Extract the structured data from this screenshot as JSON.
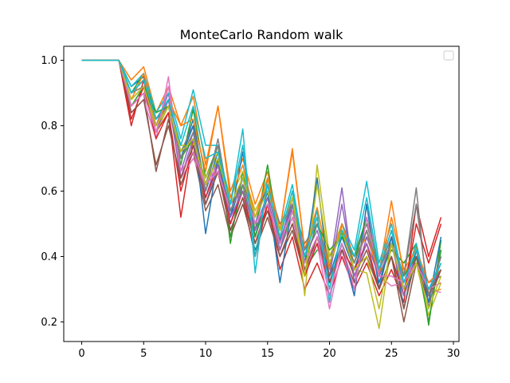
{
  "chart_data": {
    "type": "line",
    "title": "MonteCarlo Random walk",
    "xlabel": "",
    "ylabel": "",
    "xlim": [
      -1.45,
      30.45
    ],
    "ylim": [
      0.14,
      1.043
    ],
    "xticks": [
      0,
      5,
      10,
      15,
      20,
      25,
      30
    ],
    "yticks": [
      0.2,
      0.4,
      0.6,
      0.8,
      1.0
    ],
    "xtick_labels": [
      "0",
      "5",
      "10",
      "15",
      "20",
      "25",
      "30"
    ],
    "ytick_labels": [
      "0.2",
      "0.4",
      "0.6",
      "0.8",
      "1.0"
    ],
    "grid": false,
    "legend": {
      "placement": "upper right",
      "entries": []
    },
    "x": [
      0,
      1,
      2,
      3,
      4,
      5,
      6,
      7,
      8,
      9,
      10,
      11,
      12,
      13,
      14,
      15,
      16,
      17,
      18,
      19,
      20,
      21,
      22,
      23,
      24,
      25,
      26,
      27,
      28,
      29
    ],
    "series": [
      {
        "color": "#1f77b4",
        "values": [
          1,
          1,
          1,
          1,
          0.92,
          0.95,
          0.8,
          0.88,
          0.7,
          0.82,
          0.6,
          0.72,
          0.52,
          0.64,
          0.5,
          0.62,
          0.45,
          0.56,
          0.4,
          0.52,
          0.34,
          0.46,
          0.36,
          0.48,
          0.32,
          0.44,
          0.3,
          0.42,
          0.28,
          0.4
        ]
      },
      {
        "color": "#ff7f0e",
        "values": [
          1,
          1,
          1,
          1,
          0.94,
          0.98,
          0.84,
          0.92,
          0.8,
          0.89,
          0.68,
          0.86,
          0.6,
          0.7,
          0.56,
          0.66,
          0.48,
          0.73,
          0.42,
          0.55,
          0.37,
          0.5,
          0.4,
          0.46,
          0.35,
          0.57,
          0.34,
          0.43,
          0.29,
          0.3
        ]
      },
      {
        "color": "#2ca02c",
        "values": [
          1,
          1,
          1,
          1,
          0.9,
          0.96,
          0.82,
          0.86,
          0.68,
          0.85,
          0.64,
          0.74,
          0.44,
          0.66,
          0.48,
          0.68,
          0.44,
          0.54,
          0.36,
          0.42,
          0.4,
          0.47,
          0.38,
          0.52,
          0.34,
          0.42,
          0.38,
          0.44,
          0.19,
          0.45
        ]
      },
      {
        "color": "#d62728",
        "values": [
          1,
          1,
          1,
          1,
          0.8,
          0.94,
          0.78,
          0.84,
          0.52,
          0.76,
          0.56,
          0.66,
          0.48,
          0.58,
          0.4,
          0.56,
          0.36,
          0.46,
          0.3,
          0.38,
          0.28,
          0.4,
          0.3,
          0.38,
          0.28,
          0.36,
          0.26,
          0.56,
          0.4,
          0.52
        ]
      },
      {
        "color": "#9467bd",
        "values": [
          1,
          1,
          1,
          1,
          0.88,
          0.92,
          0.8,
          0.9,
          0.66,
          0.78,
          0.58,
          0.7,
          0.5,
          0.62,
          0.46,
          0.6,
          0.44,
          0.58,
          0.38,
          0.5,
          0.36,
          0.61,
          0.32,
          0.46,
          0.36,
          0.48,
          0.3,
          0.4,
          0.32,
          0.34
        ]
      },
      {
        "color": "#8c564b",
        "values": [
          1,
          1,
          1,
          1,
          0.86,
          0.9,
          0.66,
          0.82,
          0.62,
          0.72,
          0.54,
          0.62,
          0.46,
          0.56,
          0.42,
          0.52,
          0.4,
          0.48,
          0.34,
          0.46,
          0.32,
          0.44,
          0.34,
          0.42,
          0.3,
          0.4,
          0.2,
          0.38,
          0.26,
          0.36
        ]
      },
      {
        "color": "#e377c2",
        "values": [
          1,
          1,
          1,
          1,
          0.84,
          0.88,
          0.76,
          0.95,
          0.64,
          0.7,
          0.62,
          0.68,
          0.56,
          0.6,
          0.5,
          0.58,
          0.42,
          0.52,
          0.36,
          0.44,
          0.24,
          0.42,
          0.28,
          0.56,
          0.34,
          0.31,
          0.32,
          0.4,
          0.3,
          0.29
        ]
      },
      {
        "color": "#7f7f7f",
        "values": [
          1,
          1,
          1,
          1,
          0.9,
          0.94,
          0.82,
          0.88,
          0.72,
          0.8,
          0.6,
          0.76,
          0.54,
          0.64,
          0.52,
          0.62,
          0.5,
          0.56,
          0.44,
          0.5,
          0.38,
          0.48,
          0.4,
          0.5,
          0.36,
          0.46,
          0.34,
          0.61,
          0.24,
          0.42
        ]
      },
      {
        "color": "#bcbd22",
        "values": [
          1,
          1,
          1,
          1,
          0.88,
          0.92,
          0.78,
          0.86,
          0.74,
          0.74,
          0.64,
          0.72,
          0.58,
          0.66,
          0.54,
          0.62,
          0.46,
          0.6,
          0.28,
          0.68,
          0.4,
          0.5,
          0.36,
          0.35,
          0.18,
          0.44,
          0.28,
          0.38,
          0.22,
          0.32
        ]
      },
      {
        "color": "#17becf",
        "values": [
          1,
          1,
          1,
          1,
          0.92,
          0.96,
          0.84,
          0.9,
          0.76,
          0.91,
          0.74,
          0.74,
          0.56,
          0.79,
          0.35,
          0.64,
          0.48,
          0.62,
          0.4,
          0.54,
          0.26,
          0.5,
          0.42,
          0.63,
          0.38,
          0.5,
          0.32,
          0.44,
          0.28,
          0.38
        ]
      },
      {
        "color": "#1f77b4",
        "values": [
          1,
          1,
          1,
          1,
          0.9,
          0.94,
          0.82,
          0.88,
          0.7,
          0.8,
          0.47,
          0.7,
          0.52,
          0.72,
          0.46,
          0.6,
          0.32,
          0.56,
          0.38,
          0.64,
          0.32,
          0.44,
          0.28,
          0.56,
          0.3,
          0.46,
          0.24,
          0.42,
          0.26,
          0.46
        ]
      },
      {
        "color": "#ff7f0e",
        "values": [
          1,
          1,
          1,
          1,
          0.88,
          0.96,
          0.8,
          0.88,
          0.8,
          0.82,
          0.66,
          0.86,
          0.58,
          0.68,
          0.52,
          0.64,
          0.48,
          0.72,
          0.42,
          0.52,
          0.36,
          0.5,
          0.38,
          0.48,
          0.34,
          0.52,
          0.36,
          0.42,
          0.32,
          0.36
        ]
      },
      {
        "color": "#2ca02c",
        "values": [
          1,
          1,
          1,
          1,
          0.86,
          0.92,
          0.84,
          0.86,
          0.7,
          0.76,
          0.62,
          0.7,
          0.46,
          0.62,
          0.46,
          0.58,
          0.42,
          0.54,
          0.38,
          0.5,
          0.42,
          0.46,
          0.4,
          0.52,
          0.36,
          0.44,
          0.34,
          0.4,
          0.2,
          0.42
        ]
      },
      {
        "color": "#d62728",
        "values": [
          1,
          1,
          1,
          1,
          0.82,
          0.92,
          0.76,
          0.84,
          0.6,
          0.74,
          0.58,
          0.68,
          0.5,
          0.6,
          0.44,
          0.56,
          0.4,
          0.5,
          0.34,
          0.44,
          0.32,
          0.42,
          0.36,
          0.44,
          0.3,
          0.4,
          0.28,
          0.5,
          0.38,
          0.5
        ]
      },
      {
        "color": "#9467bd",
        "values": [
          1,
          1,
          1,
          1,
          0.86,
          0.9,
          0.78,
          0.88,
          0.64,
          0.76,
          0.56,
          0.68,
          0.52,
          0.6,
          0.48,
          0.58,
          0.42,
          0.56,
          0.4,
          0.48,
          0.34,
          0.56,
          0.34,
          0.44,
          0.34,
          0.44,
          0.28,
          0.4,
          0.3,
          0.36
        ]
      },
      {
        "color": "#8c564b",
        "values": [
          1,
          1,
          1,
          1,
          0.84,
          0.88,
          0.68,
          0.8,
          0.64,
          0.74,
          0.56,
          0.66,
          0.48,
          0.58,
          0.44,
          0.54,
          0.4,
          0.5,
          0.36,
          0.46,
          0.34,
          0.42,
          0.32,
          0.4,
          0.3,
          0.4,
          0.24,
          0.4,
          0.28,
          0.36
        ]
      },
      {
        "color": "#e377c2",
        "values": [
          1,
          1,
          1,
          1,
          0.86,
          0.9,
          0.78,
          0.92,
          0.66,
          0.72,
          0.62,
          0.66,
          0.54,
          0.62,
          0.5,
          0.56,
          0.44,
          0.54,
          0.38,
          0.46,
          0.28,
          0.44,
          0.3,
          0.52,
          0.34,
          0.34,
          0.32,
          0.38,
          0.3,
          0.32
        ]
      },
      {
        "color": "#7f7f7f",
        "values": [
          1,
          1,
          1,
          1,
          0.9,
          0.92,
          0.8,
          0.86,
          0.7,
          0.78,
          0.62,
          0.74,
          0.54,
          0.62,
          0.52,
          0.6,
          0.48,
          0.56,
          0.42,
          0.5,
          0.38,
          0.48,
          0.38,
          0.48,
          0.36,
          0.44,
          0.34,
          0.56,
          0.28,
          0.4
        ]
      },
      {
        "color": "#bcbd22",
        "values": [
          1,
          1,
          1,
          1,
          0.88,
          0.92,
          0.8,
          0.86,
          0.72,
          0.76,
          0.62,
          0.7,
          0.56,
          0.64,
          0.52,
          0.6,
          0.48,
          0.58,
          0.34,
          0.62,
          0.38,
          0.48,
          0.36,
          0.4,
          0.24,
          0.44,
          0.3,
          0.38,
          0.24,
          0.34
        ]
      },
      {
        "color": "#17becf",
        "values": [
          1,
          1,
          1,
          1,
          0.9,
          0.94,
          0.82,
          0.88,
          0.74,
          0.86,
          0.7,
          0.72,
          0.56,
          0.74,
          0.4,
          0.62,
          0.46,
          0.6,
          0.4,
          0.52,
          0.3,
          0.48,
          0.4,
          0.58,
          0.36,
          0.48,
          0.32,
          0.42,
          0.3,
          0.38
        ]
      }
    ]
  }
}
